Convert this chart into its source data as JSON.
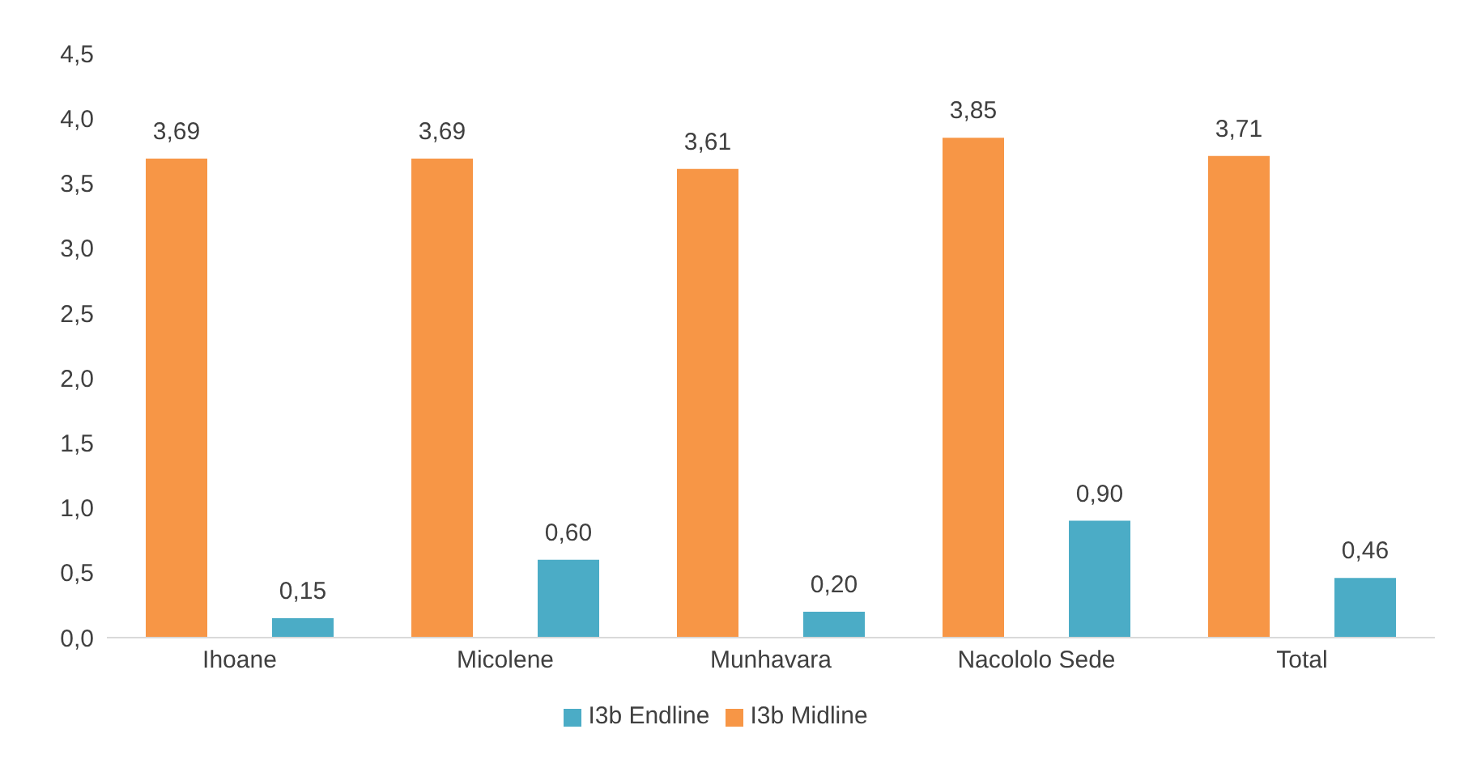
{
  "chart_data": {
    "type": "bar",
    "categories": [
      "Ihoane",
      "Micolene",
      "Munhavara",
      "Nacololo Sede",
      "Total"
    ],
    "series": [
      {
        "name": "I3b Midline",
        "color": "#f79646",
        "values": [
          3.69,
          3.69,
          3.61,
          3.85,
          3.71
        ],
        "value_labels": [
          "3,69",
          "3,69",
          "3,61",
          "3,85",
          "3,71"
        ]
      },
      {
        "name": "I3b Endline",
        "color": "#4bacc6",
        "values": [
          0.15,
          0.6,
          0.2,
          0.9,
          0.46
        ],
        "value_labels": [
          "0,15",
          "0,60",
          "0,20",
          "0,90",
          "0,46"
        ]
      }
    ],
    "ylim": [
      0,
      4.5
    ],
    "yticks": [
      {
        "value": 0,
        "label": "0,0"
      },
      {
        "value": 0.5,
        "label": "0,5"
      },
      {
        "value": 1,
        "label": "1,0"
      },
      {
        "value": 1.5,
        "label": "1,5"
      },
      {
        "value": 2,
        "label": "2,0"
      },
      {
        "value": 2.5,
        "label": "2,5"
      },
      {
        "value": 3,
        "label": "3,0"
      },
      {
        "value": 3.5,
        "label": "3,5"
      },
      {
        "value": 4,
        "label": "4,0"
      },
      {
        "value": 4.5,
        "label": "4,5"
      }
    ],
    "grid": false,
    "legend": "bottom"
  }
}
